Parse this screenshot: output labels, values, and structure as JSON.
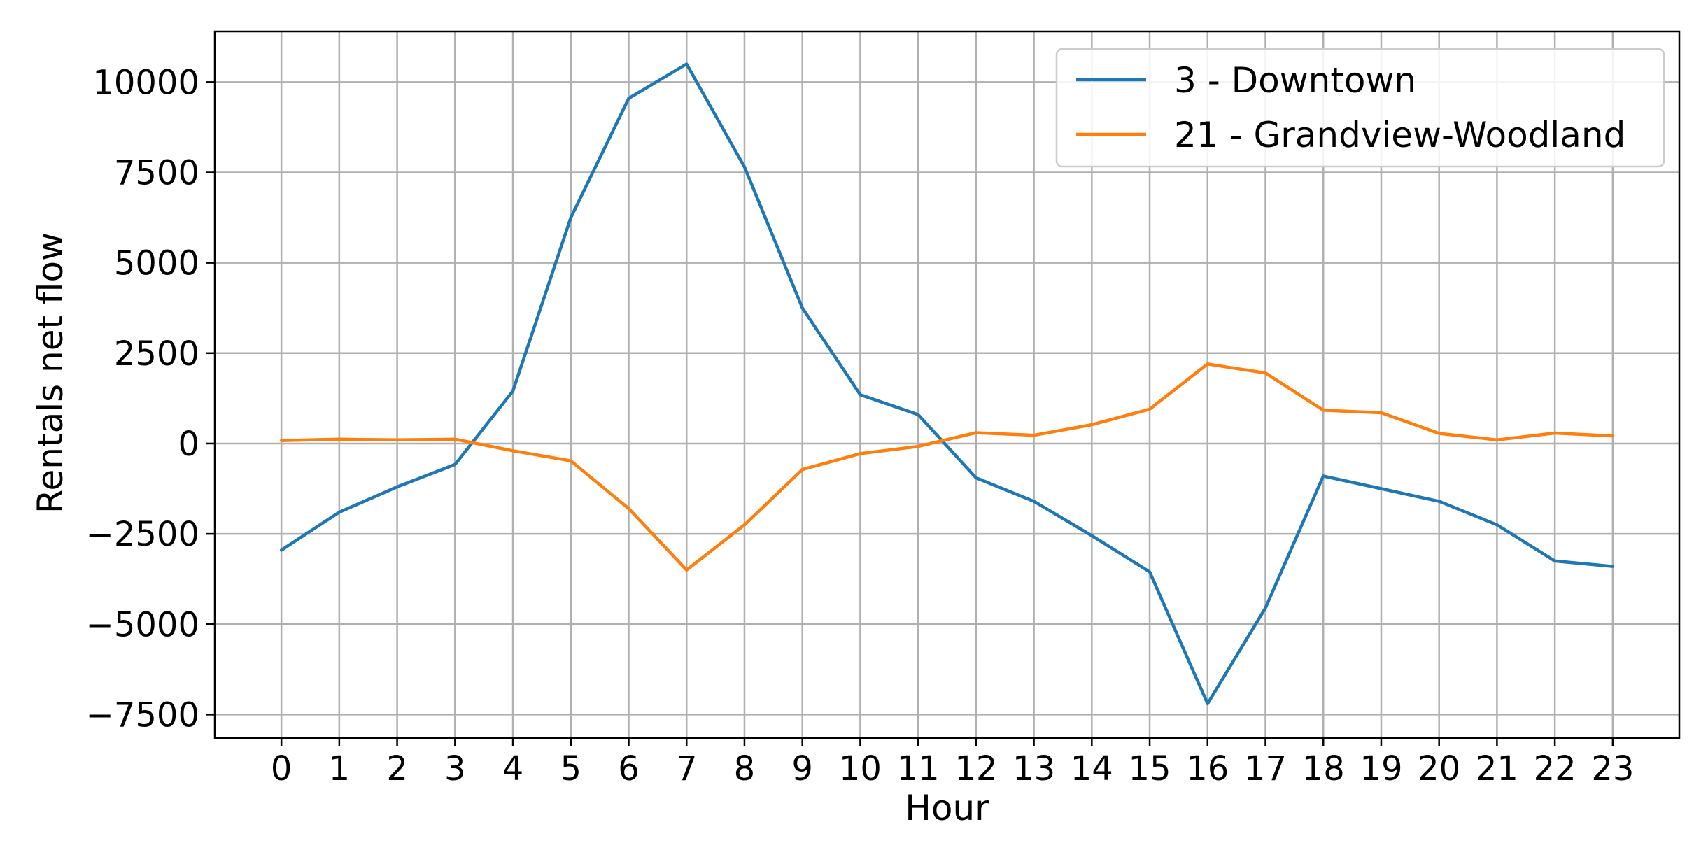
{
  "chart_data": {
    "type": "line",
    "title": "",
    "xlabel": "Hour",
    "ylabel": "Rentals net flow",
    "x": [
      0,
      1,
      2,
      3,
      4,
      5,
      6,
      7,
      8,
      9,
      10,
      11,
      12,
      13,
      14,
      15,
      16,
      17,
      18,
      19,
      20,
      21,
      22,
      23
    ],
    "x_ticks": [
      "0",
      "1",
      "2",
      "3",
      "4",
      "5",
      "6",
      "7",
      "8",
      "9",
      "10",
      "11",
      "12",
      "13",
      "14",
      "15",
      "16",
      "17",
      "18",
      "19",
      "20",
      "21",
      "22",
      "23"
    ],
    "y_ticks": [
      10000,
      7500,
      5000,
      2500,
      0,
      -2500,
      -5000,
      -7500
    ],
    "y_tick_labels": [
      "10000",
      "7500",
      "5000",
      "2500",
      "0",
      "−2500",
      "−5000",
      "−7500"
    ],
    "ylim": [
      -8150,
      11400
    ],
    "xlim": [
      -1.15,
      24.15
    ],
    "grid": true,
    "legend_position": "top-right",
    "series": [
      {
        "name": "3 - Downtown",
        "color": "#1f77b4",
        "values": [
          -2950,
          -1900,
          -1200,
          -580,
          1450,
          6250,
          9550,
          10500,
          7650,
          3750,
          1350,
          800,
          -950,
          -1600,
          -2550,
          -3550,
          -7200,
          -4550,
          -900,
          -1250,
          -1600,
          -2250,
          -3250,
          -3400
        ]
      },
      {
        "name": "21 - Grandview-Woodland",
        "color": "#ff7f0e",
        "values": [
          80,
          120,
          100,
          120,
          -200,
          -480,
          -1800,
          -3500,
          -2250,
          -720,
          -280,
          -80,
          300,
          230,
          520,
          950,
          2200,
          1950,
          920,
          850,
          280,
          100,
          290,
          210
        ]
      }
    ]
  }
}
